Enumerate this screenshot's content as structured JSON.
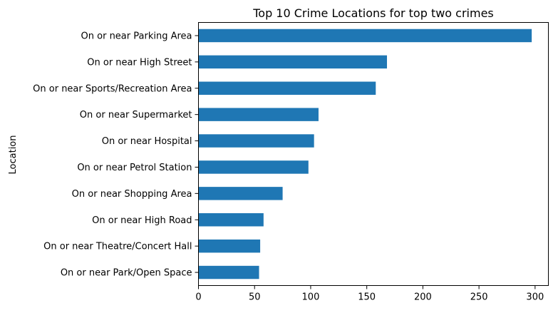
{
  "chart_data": {
    "type": "bar",
    "orientation": "horizontal",
    "title": "Top 10 Crime Locations for top two crimes",
    "xlabel": "",
    "ylabel": "Location",
    "categories": [
      "On or near Parking Area",
      "On or near High Street",
      "On or near Sports/Recreation Area",
      "On or near Supermarket",
      "On or near Hospital",
      "On or near Petrol Station",
      "On or near Shopping Area",
      "On or near High Road",
      "On or near Theatre/Concert Hall",
      "On or near Park/Open Space"
    ],
    "values": [
      297,
      168,
      158,
      107,
      103,
      98,
      75,
      58,
      55,
      54
    ],
    "xlim": [
      0,
      311.85
    ],
    "xticks": [
      0,
      50,
      100,
      150,
      200,
      250,
      300
    ],
    "grid": false,
    "legend": "none",
    "bar_color": "#1f77b4"
  }
}
